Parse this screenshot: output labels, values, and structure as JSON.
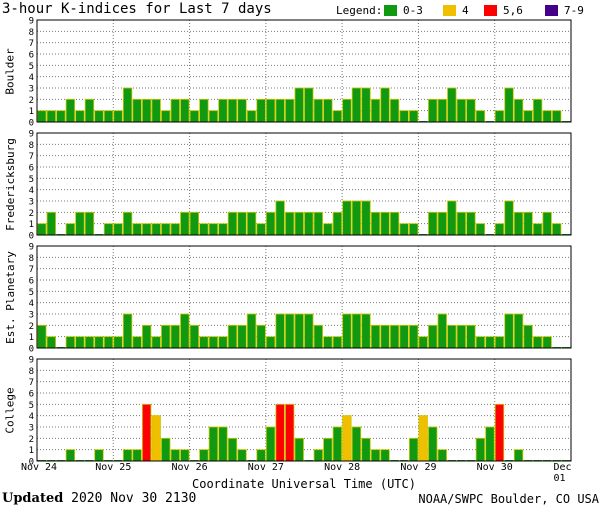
{
  "title": "3-hour K-indices for Last 7 days",
  "legend": {
    "label": "Legend:",
    "items": [
      {
        "label": "0-3",
        "color": "#119911"
      },
      {
        "label": "4",
        "color": "#f0c000"
      },
      {
        "label": "5,6",
        "color": "#ff0000"
      },
      {
        "label": "7-9",
        "color": "#440088"
      }
    ]
  },
  "footer": {
    "updated_word": "Updated",
    "updated_value": "2020 Nov 30 2130",
    "source": "NOAA/SWPC Boulder, CO USA"
  },
  "chart_data": {
    "type": "bar",
    "xlabel": "Coordinate Universal Time (UTC)",
    "ylabel": "",
    "ylim": [
      0,
      9
    ],
    "yticks": [
      "0",
      "1",
      "2",
      "3",
      "4",
      "5",
      "6",
      "7",
      "8",
      "9"
    ],
    "x_tick_labels": [
      "Nov 24",
      "Nov 25",
      "Nov 26",
      "Nov 27",
      "Nov 28",
      "Nov 29",
      "Nov 30",
      "Dec 01"
    ],
    "intervals_per_day": 8,
    "grid": true,
    "series": [
      {
        "name": "Boulder",
        "values": [
          1,
          1,
          1,
          2,
          1,
          2,
          1,
          1,
          1,
          3,
          2,
          2,
          2,
          1,
          2,
          2,
          1,
          2,
          1,
          2,
          2,
          2,
          1,
          2,
          2,
          2,
          2,
          3,
          3,
          2,
          2,
          1,
          2,
          3,
          3,
          2,
          3,
          2,
          1,
          1,
          0,
          2,
          2,
          3,
          2,
          2,
          1,
          0,
          1,
          3,
          2,
          1,
          2,
          1,
          1,
          0
        ]
      },
      {
        "name": "Fredericksburg",
        "values": [
          1,
          2,
          0,
          1,
          2,
          2,
          0,
          1,
          1,
          2,
          1,
          1,
          1,
          1,
          1,
          2,
          2,
          1,
          1,
          1,
          2,
          2,
          2,
          1,
          2,
          3,
          2,
          2,
          2,
          2,
          1,
          2,
          3,
          3,
          3,
          2,
          2,
          2,
          1,
          1,
          0,
          2,
          2,
          3,
          2,
          2,
          1,
          0,
          1,
          3,
          2,
          2,
          1,
          2,
          1,
          0
        ]
      },
      {
        "name": "Est. Planetary",
        "values": [
          2,
          1,
          0,
          1,
          1,
          1,
          1,
          1,
          1,
          3,
          1,
          2,
          1,
          2,
          2,
          3,
          2,
          1,
          1,
          1,
          2,
          2,
          3,
          2,
          1,
          3,
          3,
          3,
          3,
          2,
          1,
          1,
          3,
          3,
          3,
          2,
          2,
          2,
          2,
          2,
          1,
          2,
          3,
          2,
          2,
          2,
          1,
          1,
          1,
          3,
          3,
          2,
          1,
          1,
          0,
          0
        ]
      },
      {
        "name": "College",
        "values": [
          0,
          0,
          0,
          1,
          0,
          0,
          1,
          0,
          0,
          1,
          1,
          5,
          4,
          2,
          1,
          1,
          0,
          1,
          3,
          3,
          2,
          1,
          0,
          1,
          3,
          5,
          5,
          2,
          0,
          1,
          2,
          3,
          4,
          3,
          2,
          1,
          1,
          0,
          0,
          2,
          4,
          3,
          1,
          0,
          0,
          0,
          2,
          3,
          5,
          0,
          1,
          0,
          0,
          0,
          0,
          0
        ]
      }
    ]
  }
}
